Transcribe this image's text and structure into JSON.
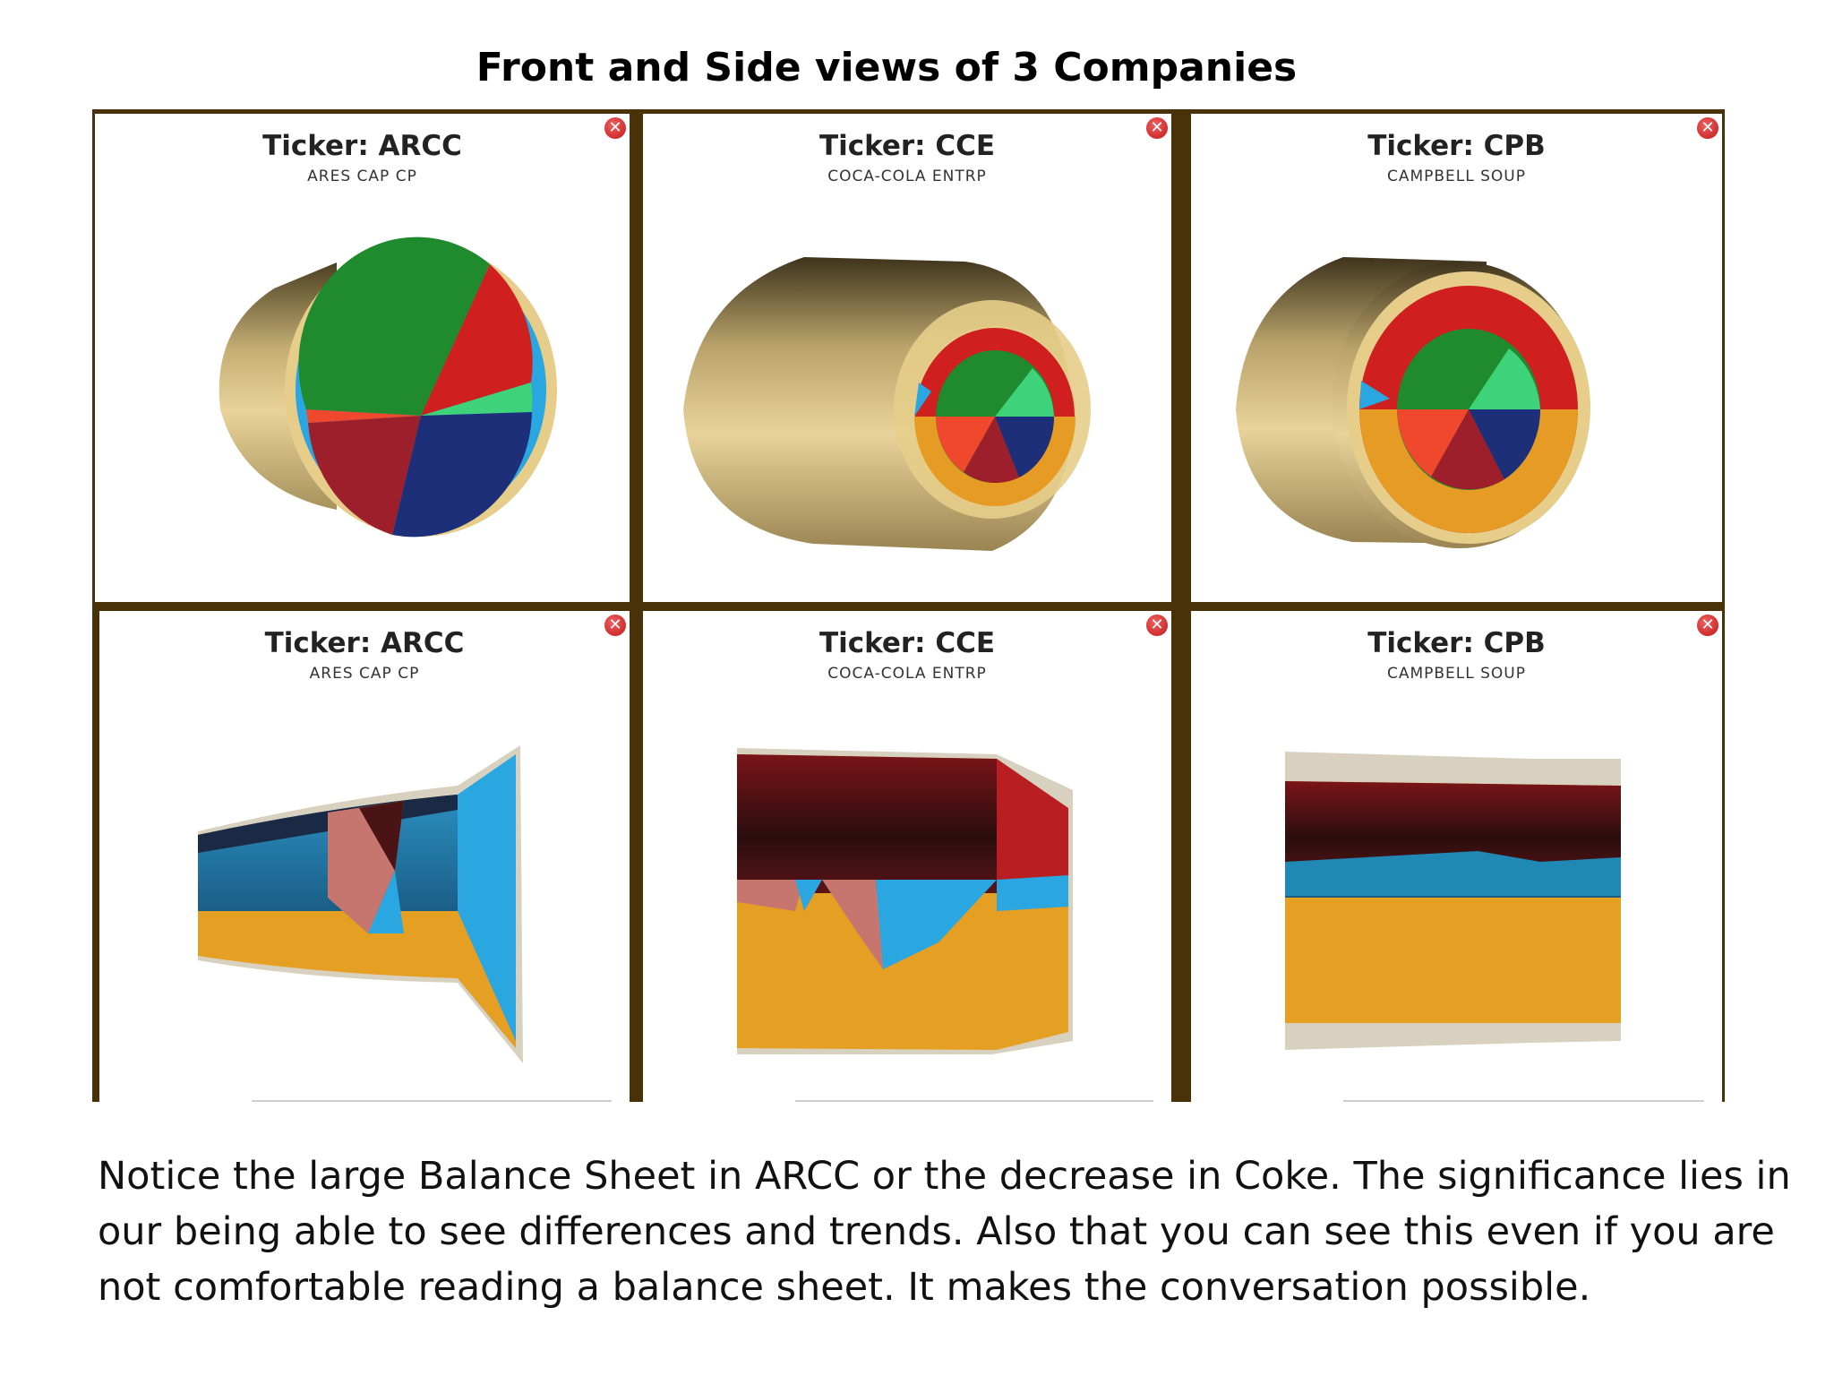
{
  "title": "Front and Side views of 3 Companies",
  "close_symbol": "✕",
  "front_views": [
    {
      "ticker": "Ticker: ARCC",
      "name": "ARES CAP CP"
    },
    {
      "ticker": "Ticker: CCE",
      "name": "COCA-COLA ENTRP"
    },
    {
      "ticker": "Ticker: CPB",
      "name": "CAMPBELL SOUP"
    }
  ],
  "side_views": [
    {
      "ticker": "Ticker: ARCC",
      "name": "ARES CAP CP"
    },
    {
      "ticker": "Ticker: CCE",
      "name": "COCA-COLA ENTRP"
    },
    {
      "ticker": "Ticker: CPB",
      "name": "CAMPBELL SOUP"
    }
  ],
  "caption": [
    "Notice the large Balance Sheet in ARCC or the decrease in Coke.  The significance lies in",
    "our being able to see differences and trends.  Also that you can see this even if you are",
    "not comfortable reading a balance sheet.  It makes the conversation possible."
  ],
  "colors": {
    "frame": "#4a3208",
    "tan": "#e6cd8a",
    "green": "#1f8a2e",
    "light_green": "#3ed27a",
    "red": "#cf1f1f",
    "dark_red": "#9c1f2b",
    "orange_red": "#f0482c",
    "navy": "#1c2f78",
    "sky_blue": "#2aa6e0",
    "orange": "#e69c24"
  }
}
